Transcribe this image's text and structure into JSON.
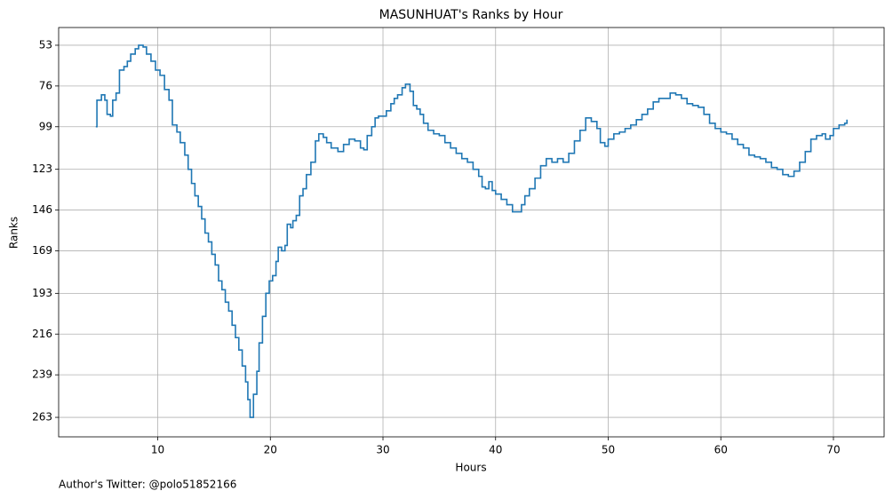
{
  "chart_data": {
    "type": "line",
    "drawstyle": "steps-post",
    "title": "MASUNHUAT's Ranks by Hour",
    "x_label": "Hours",
    "y_label": "Ranks",
    "footnote": "Author's Twitter: @polo51852166",
    "color": "#1f77b4",
    "grid": true,
    "xlim": [
      1.2,
      74.5
    ],
    "xticks": [
      10,
      20,
      30,
      40,
      50,
      60,
      70
    ],
    "ylim": [
      274,
      43
    ],
    "yticks": [
      53,
      76,
      99,
      123,
      146,
      169,
      193,
      216,
      239,
      263
    ],
    "x": [
      4.5,
      4.6,
      5.0,
      5.3,
      5.5,
      5.8,
      6.0,
      6.3,
      6.6,
      7.0,
      7.3,
      7.6,
      8.0,
      8.3,
      8.7,
      9.0,
      9.4,
      9.8,
      10.2,
      10.6,
      11.0,
      11.3,
      11.7,
      12.0,
      12.4,
      12.7,
      13.0,
      13.3,
      13.6,
      13.9,
      14.2,
      14.5,
      14.8,
      15.1,
      15.4,
      15.7,
      16.0,
      16.3,
      16.6,
      16.9,
      17.2,
      17.5,
      17.8,
      18.0,
      18.2,
      18.5,
      18.8,
      19.0,
      19.3,
      19.6,
      19.9,
      20.2,
      20.5,
      20.7,
      21.0,
      21.3,
      21.5,
      21.8,
      22.0,
      22.3,
      22.6,
      22.9,
      23.2,
      23.6,
      24.0,
      24.3,
      24.7,
      25.0,
      25.4,
      26.0,
      26.5,
      27.0,
      27.5,
      28.0,
      28.3,
      28.6,
      29.0,
      29.3,
      29.6,
      30.0,
      30.3,
      30.7,
      31.0,
      31.3,
      31.7,
      32.0,
      32.4,
      32.7,
      33.0,
      33.3,
      33.6,
      34.0,
      34.5,
      35.0,
      35.5,
      36.0,
      36.5,
      37.0,
      37.5,
      38.0,
      38.5,
      38.8,
      39.1,
      39.4,
      39.7,
      40.0,
      40.5,
      41.0,
      41.5,
      42.0,
      42.3,
      42.6,
      43.0,
      43.5,
      44.0,
      44.5,
      45.0,
      45.5,
      46.0,
      46.5,
      47.0,
      47.5,
      48.0,
      48.5,
      49.0,
      49.3,
      49.7,
      50.0,
      50.5,
      51.0,
      51.5,
      52.0,
      52.5,
      53.0,
      53.5,
      54.0,
      54.5,
      55.0,
      55.5,
      56.0,
      56.5,
      57.0,
      57.5,
      58.0,
      58.5,
      59.0,
      59.5,
      60.0,
      60.5,
      61.0,
      61.5,
      62.0,
      62.5,
      63.0,
      63.5,
      64.0,
      64.5,
      65.0,
      65.5,
      66.0,
      66.5,
      67.0,
      67.5,
      68.0,
      68.5,
      69.0,
      69.3,
      69.7,
      70.0,
      70.5,
      71.0,
      71.2
    ],
    "values": [
      99,
      84,
      81,
      84,
      92,
      93,
      84,
      80,
      67,
      65,
      62,
      58,
      55,
      53,
      54,
      58,
      62,
      67,
      70,
      78,
      84,
      98,
      102,
      108,
      115,
      123,
      131,
      138,
      144,
      151,
      159,
      164,
      171,
      177,
      186,
      191,
      198,
      203,
      211,
      218,
      225,
      234,
      243,
      253,
      263,
      250,
      237,
      221,
      206,
      193,
      186,
      183,
      175,
      167,
      169,
      166,
      154,
      156,
      152,
      149,
      138,
      134,
      126,
      119,
      107,
      103,
      105,
      108,
      111,
      113,
      109,
      106,
      107,
      111,
      112,
      104,
      99,
      94,
      93,
      93,
      90,
      86,
      83,
      81,
      77,
      75,
      79,
      87,
      89,
      92,
      97,
      101,
      103,
      104,
      108,
      111,
      114,
      117,
      119,
      123,
      127,
      133,
      134,
      130,
      135,
      137,
      140,
      143,
      147,
      147,
      143,
      138,
      134,
      128,
      121,
      117,
      119,
      117,
      119,
      114,
      107,
      101,
      94,
      96,
      100,
      108,
      110,
      106,
      103,
      102,
      100,
      98,
      95,
      92,
      89,
      85,
      83,
      83,
      80,
      81,
      83,
      86,
      87,
      88,
      92,
      97,
      100,
      102,
      103,
      106,
      109,
      111,
      115,
      116,
      117,
      119,
      122,
      123,
      126,
      127,
      124,
      119,
      113,
      106,
      104,
      103,
      106,
      104,
      100,
      98,
      97,
      95
    ]
  }
}
